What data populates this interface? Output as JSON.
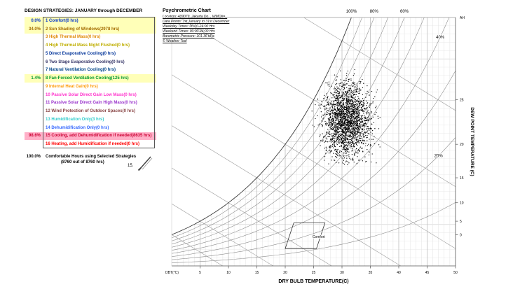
{
  "left_panel": {
    "title": "DESIGN STRATEGIES:  JANUARY through DECEMBER",
    "strategies": [
      {
        "pct": "0.0%",
        "label": "1 Comfort(0 hrs)",
        "color": "#0033cc",
        "bg": "#ffffb8"
      },
      {
        "pct": "34.0%",
        "label": "2 Sun Shading of Windows(2978 hrs)",
        "color": "#a36b00",
        "bg": "#ffffb8"
      },
      {
        "pct": "",
        "label": "3 High Thermal Mass(0 hrs)",
        "color": "#e08800",
        "bg": ""
      },
      {
        "pct": "",
        "label": "4 High Thermal Mass Night Flushed(0 hrs)",
        "color": "#bfae00",
        "bg": ""
      },
      {
        "pct": "",
        "label": "5 Direct Evaporative Cooling(0 hrs)",
        "color": "#003399",
        "bg": ""
      },
      {
        "pct": "",
        "label": "6 Two Stage Evaporative Cooling(0 hrs)",
        "color": "#333366",
        "bg": ""
      },
      {
        "pct": "",
        "label": "7 Natural Ventilation Cooling(0 hrs)",
        "color": "#004488",
        "bg": ""
      },
      {
        "pct": "1.4%",
        "label": "8 Fan-Forced Ventilation Cooling(125 hrs)",
        "color": "#009933",
        "bg": "#ffffb8"
      },
      {
        "pct": "",
        "label": "9 Internal Heat Gain(0 hrs)",
        "color": "#ff9900",
        "bg": ""
      },
      {
        "pct": "",
        "label": "10 Passive Solar Direct Gain Low Mass(0 hrs)",
        "color": "#ff33cc",
        "bg": ""
      },
      {
        "pct": "",
        "label": "11 Passive Solar Direct Gain High Mass(0 hrs)",
        "color": "#9933cc",
        "bg": ""
      },
      {
        "pct": "",
        "label": "12 Wind Protection of Outdoor Spaces(0 hrs)",
        "color": "#884444",
        "bg": ""
      },
      {
        "pct": "",
        "label": "13 Humidification Only(3 hrs)",
        "color": "#33cccc",
        "bg": ""
      },
      {
        "pct": "",
        "label": "14 Dehumidification Only(0 hrs)",
        "color": "#3366ff",
        "bg": ""
      },
      {
        "pct": "98.6%",
        "label": "15 Cooling, add Dehumidification if needed(8635 hrs)",
        "color": "#cc0033",
        "bg": "#ffb0c8"
      },
      {
        "pct": "",
        "label": "16 Heating, add Humidification if needed(0 hrs)",
        "color": "#ff0000",
        "bg": ""
      }
    ],
    "summary_pct": "100.0%",
    "summary_text": "Comfortable Hours using Selected Strategies",
    "summary_sub": "(8760 out of 8760 hrs)",
    "marker_label": "15."
  },
  "chart_header": {
    "title": "Psychrometric Chart",
    "lines": [
      "Location: 409079_Jakarta Do.., WMO#=..",
      "Data Points: 1st January to 31st December",
      "Weekday Times: 00:00-24:00 Hrs",
      "Weekend Times: 00:00-24:00 Hrs",
      "Barometric Pressure: 101.36 kPa",
      "© Weather Tool"
    ]
  },
  "chart_data": {
    "type": "scatter",
    "title": "Psychrometric Chart",
    "xlabel": "DRY BULB TEMPERATURE(C)",
    "x_axis_prefix": "DBT(°C)",
    "ylabel_right": "DEW POINT TEMPERATURE (C)",
    "ah_label": "AH",
    "xlim": [
      0,
      50
    ],
    "x_ticks": [
      5,
      10,
      15,
      20,
      25,
      30,
      35,
      40,
      45,
      50
    ],
    "w_max": 0.03,
    "pressure_kpa": 101.36,
    "rh_curves": [
      10,
      20,
      30,
      40,
      50,
      60,
      70,
      80,
      90,
      100
    ],
    "rh_labels_top": [
      {
        "rh": 100,
        "text": "100%"
      },
      {
        "rh": 80,
        "text": "80%"
      },
      {
        "rh": 60,
        "text": "60%"
      }
    ],
    "rh_labels_inline": [
      {
        "rh": 40,
        "t": 47.3,
        "text": "40%"
      },
      {
        "rh": 20,
        "t": 47.0,
        "text": "20%"
      }
    ],
    "wet_bulb_lines": [
      0,
      5,
      10,
      15,
      20,
      25,
      30
    ],
    "dew_point_ticks": [
      0,
      5,
      10,
      15,
      20,
      25
    ],
    "comfort_zone": {
      "label": "Comfort",
      "label_t": 24.8,
      "label_w": 0.0034,
      "polygon_t_w": [
        [
          20.0,
          0.0021
        ],
        [
          25.5,
          0.0021
        ],
        [
          27.0,
          0.0052
        ],
        [
          21.5,
          0.0052
        ]
      ]
    },
    "scatter_cluster": {
      "count": 2200,
      "seed": 42,
      "t_mean": 30.8,
      "t_std": 2.0,
      "t_range": [
        24.0,
        37.5
      ],
      "w_mean": 0.0176,
      "w_std": 0.0022,
      "w_range": [
        0.0122,
        0.0238
      ]
    }
  }
}
